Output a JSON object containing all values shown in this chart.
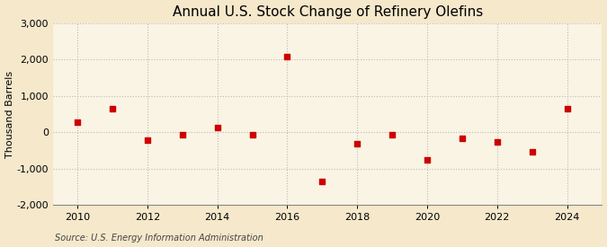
{
  "title": "Annual U.S. Stock Change of Refinery Olefins",
  "ylabel": "Thousand Barrels",
  "source": "Source: U.S. Energy Information Administration",
  "background_color": "#f5e8cb",
  "plot_bg_color": "#faf4e4",
  "marker_color": "#cc0000",
  "years": [
    2010,
    2011,
    2012,
    2013,
    2014,
    2015,
    2016,
    2017,
    2018,
    2019,
    2020,
    2021,
    2022,
    2023,
    2024
  ],
  "values": [
    290,
    650,
    -200,
    -60,
    130,
    -60,
    2080,
    -1350,
    -310,
    -65,
    -750,
    -160,
    -250,
    -530,
    640
  ],
  "ylim": [
    -2000,
    3000
  ],
  "xlim": [
    2009.3,
    2025.0
  ],
  "yticks": [
    -2000,
    -1000,
    0,
    1000,
    2000,
    3000
  ],
  "xticks": [
    2010,
    2012,
    2014,
    2016,
    2018,
    2020,
    2022,
    2024
  ],
  "title_fontsize": 11,
  "label_fontsize": 8,
  "tick_fontsize": 8,
  "source_fontsize": 7
}
